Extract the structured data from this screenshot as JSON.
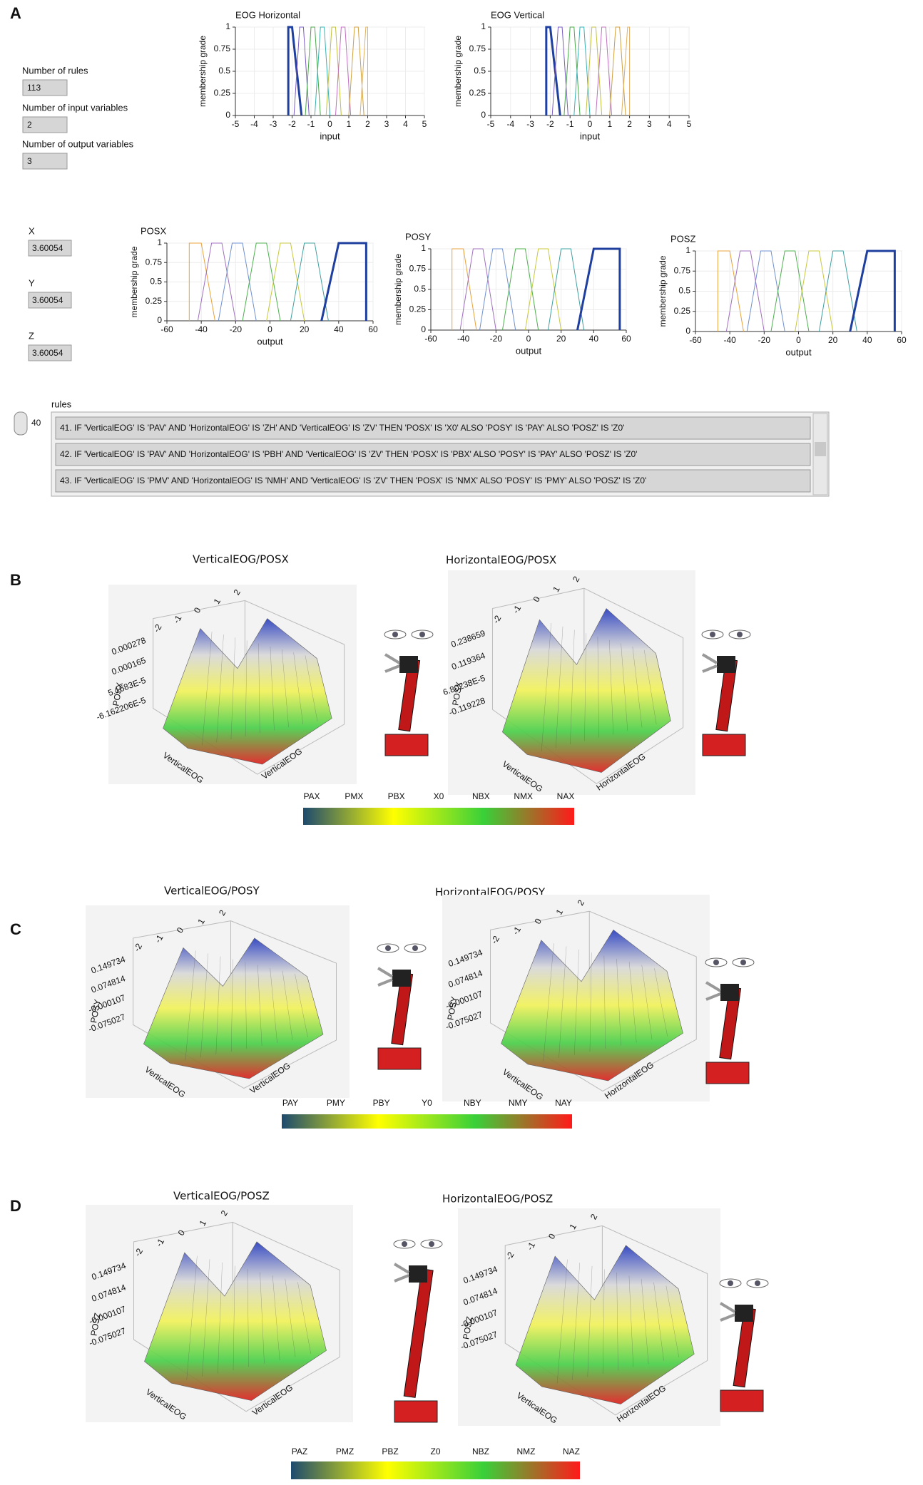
{
  "panel_labels": [
    "A",
    "B",
    "C",
    "D"
  ],
  "fis": {
    "rules_label": "Number of rules",
    "rules": "113",
    "inputs_label": "Number of input variables",
    "inputs": "2",
    "outputs_label": "Number of output variables",
    "outputs": "3"
  },
  "outputs": [
    {
      "label": "X",
      "value": "3.60054"
    },
    {
      "label": "Y",
      "value": "3.60054"
    },
    {
      "label": "Z",
      "value": "3.60054"
    }
  ],
  "chart_data": [
    {
      "type": "line",
      "title": "EOG Horizontal",
      "xlabel": "input",
      "ylabel": "membership grade",
      "xlim": [
        -5,
        5
      ],
      "xticks": [
        -5,
        -4,
        -3,
        -2,
        -1,
        0,
        1,
        2,
        3,
        4,
        5
      ],
      "ylim": [
        0,
        1
      ],
      "yticks": [
        0,
        0.25,
        0.5,
        0.75,
        1
      ],
      "series": [
        {
          "color": "#1f3f9f",
          "width": 3,
          "x": [
            -2.2,
            -2.2,
            -2,
            -1.5
          ],
          "values": [
            0,
            1,
            1,
            0
          ]
        },
        {
          "color": "#7a5cc0",
          "width": 1,
          "x": [
            -1.9,
            -1.6,
            -1.4,
            -1.1
          ],
          "values": [
            0,
            1,
            1,
            0
          ]
        },
        {
          "color": "#4aa84a",
          "width": 1,
          "x": [
            -1.3,
            -1,
            -0.8,
            -0.5
          ],
          "values": [
            0,
            1,
            1,
            0
          ]
        },
        {
          "color": "#3ab0b0",
          "width": 1,
          "x": [
            -0.8,
            -0.5,
            -0.3,
            0
          ],
          "values": [
            0,
            1,
            1,
            0
          ]
        },
        {
          "color": "#c0c040",
          "width": 1,
          "x": [
            -0.2,
            0.1,
            0.3,
            0.6
          ],
          "values": [
            0,
            1,
            1,
            0
          ]
        },
        {
          "color": "#c070c0",
          "width": 1,
          "x": [
            0.3,
            0.6,
            0.8,
            1.1
          ],
          "values": [
            0,
            1,
            1,
            0
          ]
        },
        {
          "color": "#d0a040",
          "width": 1,
          "x": [
            1,
            1.3,
            1.5,
            1.8
          ],
          "values": [
            0,
            1,
            1,
            0
          ]
        },
        {
          "color": "#e0b060",
          "width": 1,
          "x": [
            1.6,
            1.9,
            2,
            2
          ],
          "values": [
            0,
            1,
            1,
            0
          ]
        }
      ]
    },
    {
      "type": "line",
      "title": "EOG Vertical",
      "xlabel": "input",
      "ylabel": "membership grade",
      "xlim": [
        -5,
        5
      ],
      "xticks": [
        -5,
        -4,
        -3,
        -2,
        -1,
        0,
        1,
        2,
        3,
        4,
        5
      ],
      "ylim": [
        0,
        1
      ],
      "yticks": [
        0,
        0.25,
        0.5,
        0.75,
        1
      ],
      "series": [
        {
          "color": "#1f3f9f",
          "width": 3,
          "x": [
            -2.2,
            -2.2,
            -2,
            -1.5
          ],
          "values": [
            0,
            1,
            1,
            0
          ]
        },
        {
          "color": "#7a5cc0",
          "width": 1,
          "x": [
            -1.9,
            -1.6,
            -1.4,
            -1.1
          ],
          "values": [
            0,
            1,
            1,
            0
          ]
        },
        {
          "color": "#4aa84a",
          "width": 1,
          "x": [
            -1.3,
            -1,
            -0.8,
            -0.5
          ],
          "values": [
            0,
            1,
            1,
            0
          ]
        },
        {
          "color": "#3ab0b0",
          "width": 1,
          "x": [
            -0.8,
            -0.5,
            -0.3,
            0
          ],
          "values": [
            0,
            1,
            1,
            0
          ]
        },
        {
          "color": "#c0c040",
          "width": 1,
          "x": [
            -0.2,
            0.1,
            0.3,
            0.6
          ],
          "values": [
            0,
            1,
            1,
            0
          ]
        },
        {
          "color": "#c070c0",
          "width": 1,
          "x": [
            0.3,
            0.6,
            0.8,
            1.1
          ],
          "values": [
            0,
            1,
            1,
            0
          ]
        },
        {
          "color": "#d0a040",
          "width": 1,
          "x": [
            1,
            1.3,
            1.5,
            1.8
          ],
          "values": [
            0,
            1,
            1,
            0
          ]
        },
        {
          "color": "#e0b060",
          "width": 1,
          "x": [
            1.6,
            1.9,
            2,
            2
          ],
          "values": [
            0,
            1,
            1,
            0
          ]
        }
      ]
    },
    {
      "type": "line",
      "title": "POSX",
      "xlabel": "output",
      "ylabel": "membership grade",
      "xlim": [
        -60,
        60
      ],
      "xticks": [
        -60,
        -40,
        -20,
        0,
        20,
        40,
        60
      ],
      "ylim": [
        0,
        1
      ],
      "yticks": [
        0,
        0.25,
        0.5,
        0.75,
        1
      ],
      "series": [
        {
          "color": "#e8a33c",
          "width": 1,
          "x": [
            -47,
            -47,
            -40,
            -32
          ],
          "values": [
            0,
            1,
            1,
            0
          ]
        },
        {
          "color": "#a070c0",
          "width": 1,
          "x": [
            -42,
            -34,
            -28,
            -20
          ],
          "values": [
            0,
            1,
            1,
            0
          ]
        },
        {
          "color": "#7090d0",
          "width": 1,
          "x": [
            -30,
            -22,
            -16,
            -8
          ],
          "values": [
            0,
            1,
            1,
            0
          ]
        },
        {
          "color": "#50b050",
          "width": 1,
          "x": [
            -16,
            -8,
            -2,
            6
          ],
          "values": [
            0,
            1,
            1,
            0
          ]
        },
        {
          "color": "#c8c840",
          "width": 1,
          "x": [
            -2,
            6,
            12,
            20
          ],
          "values": [
            0,
            1,
            1,
            0
          ]
        },
        {
          "color": "#40a0a0",
          "width": 1,
          "x": [
            12,
            20,
            26,
            34
          ],
          "values": [
            0,
            1,
            1,
            0
          ]
        },
        {
          "color": "#1f3f9f",
          "width": 3,
          "x": [
            30,
            40,
            56,
            56
          ],
          "values": [
            0,
            1,
            1,
            0
          ]
        }
      ]
    },
    {
      "type": "line",
      "title": "POSY",
      "xlabel": "output",
      "ylabel": "membership grade",
      "xlim": [
        -60,
        60
      ],
      "xticks": [
        -60,
        -40,
        -20,
        0,
        20,
        40,
        60
      ],
      "ylim": [
        0,
        1
      ],
      "yticks": [
        0,
        0.25,
        0.5,
        0.75,
        1
      ],
      "series": [
        {
          "color": "#e8a33c",
          "width": 1,
          "x": [
            -47,
            -47,
            -40,
            -32
          ],
          "values": [
            0,
            1,
            1,
            0
          ]
        },
        {
          "color": "#a070c0",
          "width": 1,
          "x": [
            -42,
            -34,
            -28,
            -20
          ],
          "values": [
            0,
            1,
            1,
            0
          ]
        },
        {
          "color": "#7090d0",
          "width": 1,
          "x": [
            -30,
            -22,
            -16,
            -8
          ],
          "values": [
            0,
            1,
            1,
            0
          ]
        },
        {
          "color": "#50b050",
          "width": 1,
          "x": [
            -16,
            -8,
            -2,
            6
          ],
          "values": [
            0,
            1,
            1,
            0
          ]
        },
        {
          "color": "#c8c840",
          "width": 1,
          "x": [
            -2,
            6,
            12,
            20
          ],
          "values": [
            0,
            1,
            1,
            0
          ]
        },
        {
          "color": "#40a0a0",
          "width": 1,
          "x": [
            12,
            20,
            26,
            34
          ],
          "values": [
            0,
            1,
            1,
            0
          ]
        },
        {
          "color": "#1f3f9f",
          "width": 3,
          "x": [
            30,
            40,
            56,
            56
          ],
          "values": [
            0,
            1,
            1,
            0
          ]
        }
      ]
    },
    {
      "type": "line",
      "title": "POSZ",
      "xlabel": "output",
      "ylabel": "membership grade",
      "xlim": [
        -60,
        60
      ],
      "xticks": [
        -60,
        -40,
        -20,
        0,
        20,
        40,
        60
      ],
      "ylim": [
        0,
        1
      ],
      "yticks": [
        0,
        0.25,
        0.5,
        0.75,
        1
      ],
      "series": [
        {
          "color": "#e8a33c",
          "width": 1,
          "x": [
            -47,
            -47,
            -40,
            -32
          ],
          "values": [
            0,
            1,
            1,
            0
          ]
        },
        {
          "color": "#a070c0",
          "width": 1,
          "x": [
            -42,
            -34,
            -28,
            -20
          ],
          "values": [
            0,
            1,
            1,
            0
          ]
        },
        {
          "color": "#7090d0",
          "width": 1,
          "x": [
            -30,
            -22,
            -16,
            -8
          ],
          "values": [
            0,
            1,
            1,
            0
          ]
        },
        {
          "color": "#50b050",
          "width": 1,
          "x": [
            -16,
            -8,
            -2,
            6
          ],
          "values": [
            0,
            1,
            1,
            0
          ]
        },
        {
          "color": "#c8c840",
          "width": 1,
          "x": [
            -2,
            6,
            12,
            20
          ],
          "values": [
            0,
            1,
            1,
            0
          ]
        },
        {
          "color": "#40a0a0",
          "width": 1,
          "x": [
            12,
            20,
            26,
            34
          ],
          "values": [
            0,
            1,
            1,
            0
          ]
        },
        {
          "color": "#1f3f9f",
          "width": 3,
          "x": [
            30,
            40,
            56,
            56
          ],
          "values": [
            0,
            1,
            1,
            0
          ]
        }
      ]
    }
  ],
  "rules": {
    "label": "rules",
    "index": 40,
    "rows": [
      "41. IF 'VerticalEOG' IS 'PAV' AND 'HorizontalEOG' IS 'ZH' AND 'VerticalEOG' IS 'ZV' THEN 'POSX' IS 'X0' ALSO 'POSY' IS 'PAY' ALSO 'POSZ' IS 'Z0'",
      "42. IF 'VerticalEOG' IS 'PAV' AND 'HorizontalEOG' IS 'PBH' AND 'VerticalEOG' IS 'ZV' THEN 'POSX' IS 'PBX' ALSO 'POSY' IS 'PAY' ALSO 'POSZ' IS 'Z0'",
      "43. IF 'VerticalEOG' IS 'PMV' AND 'HorizontalEOG' IS 'NMH' AND 'VerticalEOG' IS 'ZV' THEN 'POSX' IS 'NMX' ALSO 'POSY' IS 'PMY' ALSO 'POSZ' IS 'Z0'"
    ]
  },
  "surfaces": [
    {
      "title": "VerticalEOG/POSX",
      "zlabel": "POSX",
      "zticks": [
        "0.000278",
        "0.000165",
        "5.1683E-5",
        "-6.162206E-5"
      ],
      "axes": [
        "VerticalEOG",
        "VerticalEOG"
      ],
      "ticks": [
        "2",
        "1",
        "0",
        "-1",
        "-2"
      ]
    },
    {
      "title": "HorizontalEOG/POSX",
      "zlabel": "POSX",
      "zticks": [
        "0.238659",
        "0.119364",
        "6.80238E-5",
        "-0.119228"
      ],
      "axes": [
        "VerticalEOG",
        "HorizontalEOG"
      ],
      "ticks": [
        "2",
        "1",
        "0",
        "-1",
        "-2"
      ]
    },
    {
      "title": "VerticalEOG/POSY",
      "zlabel": "POSY",
      "zticks": [
        "0.149734",
        "0.074814",
        "-0.000107",
        "-0.075027"
      ],
      "axes": [
        "VerticalEOG",
        "VerticalEOG"
      ],
      "ticks": [
        "2",
        "1",
        "0",
        "-1",
        "-2"
      ]
    },
    {
      "title": "HorizontalEOG/POSY",
      "zlabel": "POSY",
      "zticks": [
        "0.149734",
        "0.074814",
        "-0.000107",
        "-0.075027"
      ],
      "axes": [
        "VerticalEOG",
        "HorizontalEOG"
      ],
      "ticks": [
        "2",
        "1",
        "0",
        "-1",
        "-2"
      ]
    },
    {
      "title": "VerticalEOG/POSZ",
      "zlabel": "POSZ",
      "zticks": [
        "0.149734",
        "0.074814",
        "-0.000107",
        "-0.075027"
      ],
      "axes": [
        "VerticalEOG",
        "VerticalEOG"
      ],
      "ticks": [
        "2",
        "1",
        "0",
        "-1",
        "-2"
      ]
    },
    {
      "title": "HorizontalEOG/POSZ",
      "zlabel": "POSZ",
      "zticks": [
        "0.149734",
        "0.074814",
        "-0.000107",
        "-0.075027"
      ],
      "axes": [
        "VerticalEOG",
        "HorizontalEOG"
      ],
      "ticks": [
        "2",
        "1",
        "0",
        "-1",
        "-2"
      ]
    }
  ],
  "colorbars": [
    {
      "labels": [
        "PAX",
        "PMX",
        "PBX",
        "X0",
        "NBX",
        "NMX",
        "NAX"
      ],
      "colors": [
        "#1d4a6e",
        "#ffff00",
        "#39d039",
        "#ff1a1a"
      ]
    },
    {
      "labels": [
        "PAY",
        "PMY",
        "PBY",
        "Y0",
        "NBY",
        "NMY",
        "NAY"
      ],
      "colors": [
        "#1d4a6e",
        "#ffff00",
        "#39d039",
        "#ff1a1a"
      ]
    },
    {
      "labels": [
        "PAZ",
        "PMZ",
        "PBZ",
        "Z0",
        "NBZ",
        "NMZ",
        "NAZ"
      ],
      "colors": [
        "#1d4a6e",
        "#ffff00",
        "#39d039",
        "#ff1a1a"
      ]
    }
  ]
}
